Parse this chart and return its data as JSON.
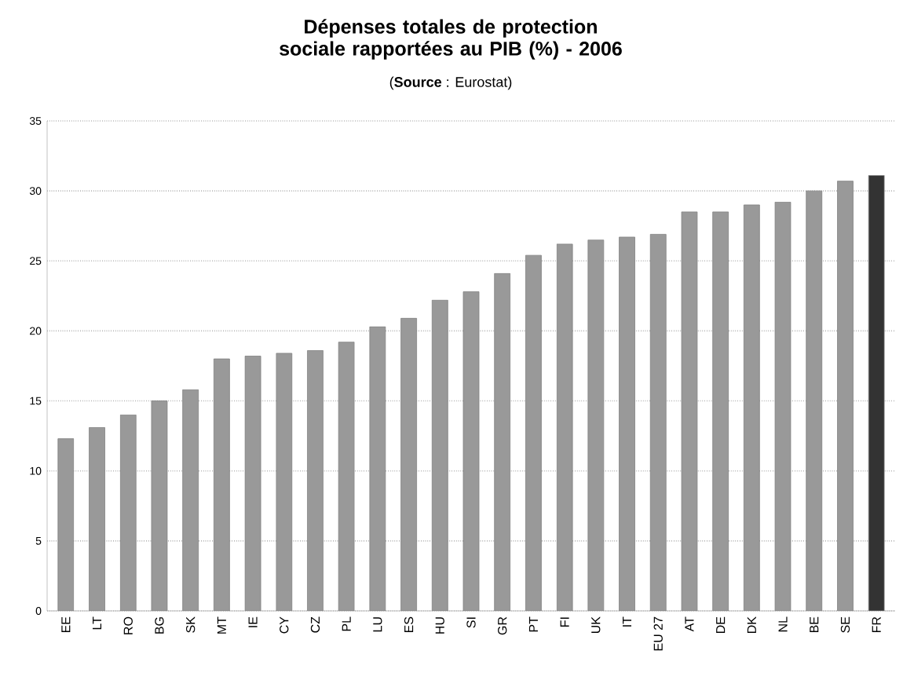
{
  "chart_data": {
    "type": "bar",
    "title": "Dépenses totales de protection sociale rapportées au PIB (%) - 2006",
    "subtitle": "(**Source** : Eurostat)",
    "categories": [
      "EE",
      "LT",
      "RO",
      "BG",
      "SK",
      "MT",
      "IE",
      "CY",
      "CZ",
      "PL",
      "LU",
      "ES",
      "HU",
      "SI",
      "GR",
      "PT",
      "FI",
      "UK",
      "IT",
      "EU 27",
      "AT",
      "DE",
      "DK",
      "NL",
      "BE",
      "SE",
      "FR"
    ],
    "values": [
      12.3,
      13.1,
      14.0,
      15.0,
      15.8,
      18.0,
      18.2,
      18.4,
      18.6,
      19.2,
      20.3,
      20.9,
      22.2,
      22.8,
      24.1,
      25.4,
      26.2,
      26.5,
      26.7,
      26.9,
      28.5,
      28.5,
      29.0,
      29.2,
      30.0,
      30.7,
      31.1
    ],
    "colors": [
      "#999999",
      "#999999",
      "#999999",
      "#999999",
      "#999999",
      "#999999",
      "#999999",
      "#999999",
      "#999999",
      "#999999",
      "#999999",
      "#999999",
      "#999999",
      "#999999",
      "#999999",
      "#999999",
      "#999999",
      "#999999",
      "#999999",
      "#999999",
      "#999999",
      "#999999",
      "#999999",
      "#999999",
      "#999999",
      "#999999",
      "#333333"
    ],
    "ylim": [
      0,
      35
    ],
    "yticks": [
      0,
      5,
      10,
      15,
      20,
      25,
      30,
      35
    ],
    "grid": "y"
  }
}
